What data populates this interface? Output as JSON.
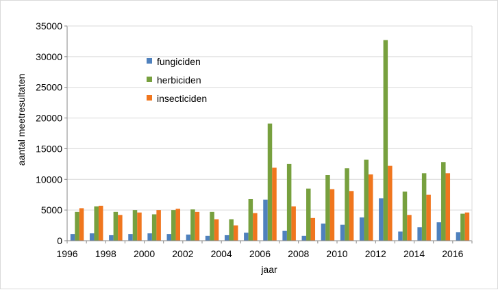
{
  "chart_data": {
    "type": "bar",
    "title": "",
    "xlabel": "jaar",
    "ylabel": "aantal meetresultaten",
    "ylim": [
      0,
      35000
    ],
    "yticks": [
      0,
      5000,
      10000,
      15000,
      20000,
      25000,
      30000,
      35000
    ],
    "categories": [
      "1996",
      "1997",
      "1998",
      "1999",
      "2000",
      "2001",
      "2002",
      "2003",
      "2004",
      "2005",
      "2006",
      "2007",
      "2008",
      "2009",
      "2010",
      "2011",
      "2012",
      "2013",
      "2014",
      "2015",
      "2016"
    ],
    "xtick_labels": [
      "1996",
      "1998",
      "2000",
      "2002",
      "2004",
      "2006",
      "2008",
      "2010",
      "2012",
      "2014",
      "2016"
    ],
    "grid": true,
    "legend_position": "top-left",
    "series": [
      {
        "name": "fungiciden",
        "color": "#4f81bd",
        "values": [
          1100,
          1200,
          900,
          1100,
          1200,
          1100,
          1000,
          800,
          900,
          1300,
          6700,
          1600,
          800,
          2800,
          2600,
          3800,
          6900,
          1500,
          2200,
          3000,
          1400
        ]
      },
      {
        "name": "herbiciden",
        "color": "#77a03e",
        "values": [
          4700,
          5600,
          4700,
          5000,
          4300,
          5000,
          5100,
          4700,
          3500,
          6800,
          19100,
          12500,
          8500,
          10700,
          11800,
          13200,
          32700,
          8000,
          11000,
          12800,
          4400
        ]
      },
      {
        "name": "insecticiden",
        "color": "#f0761e",
        "values": [
          5300,
          5700,
          4200,
          4600,
          5000,
          5200,
          4700,
          3500,
          2500,
          4500,
          11900,
          5600,
          3700,
          8400,
          8100,
          10800,
          12200,
          4200,
          7500,
          11000,
          4600
        ]
      }
    ]
  }
}
